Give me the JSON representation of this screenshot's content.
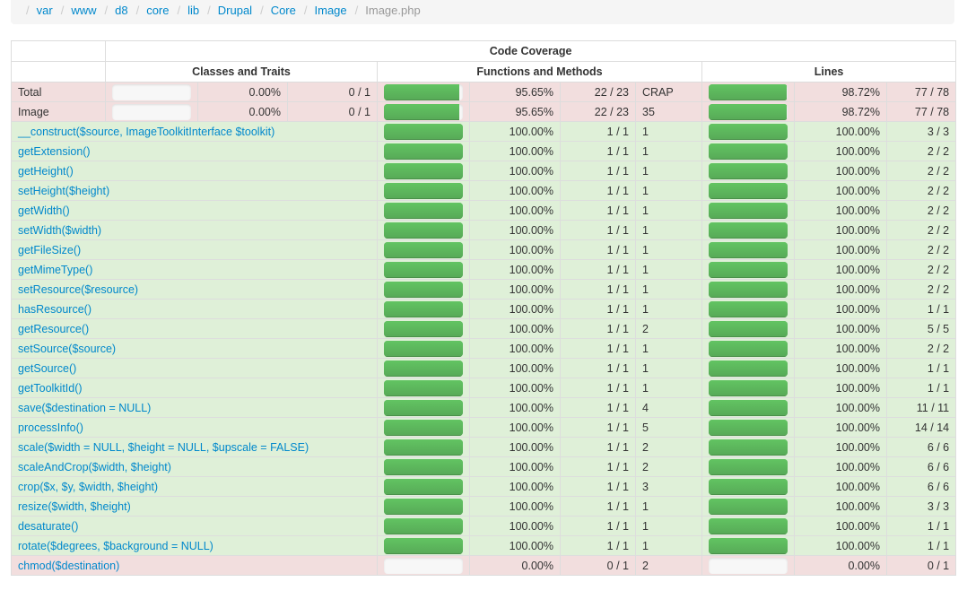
{
  "breadcrumb": [
    "var",
    "www",
    "d8",
    "core",
    "lib",
    "Drupal",
    "Core",
    "Image",
    "Image.php"
  ],
  "header": {
    "title": "Code Coverage",
    "classes": "Classes and Traits",
    "functions": "Functions and Methods",
    "lines": "Lines"
  },
  "colors": {
    "success": "#dff0d8",
    "danger": "#f2dede",
    "bar": "#5eb95e",
    "link": "#0088cc"
  },
  "rows": [
    {
      "name": "Total",
      "link": false,
      "status": "danger",
      "classes": {
        "pct": "0.00%",
        "ratio": "0 / 1",
        "fill": 0
      },
      "functions": {
        "pct": "95.65%",
        "ratio": "22 / 23",
        "fill": 0.9565
      },
      "crap": "CRAP",
      "lines": {
        "pct": "98.72%",
        "ratio": "77 / 78",
        "fill": 0.9872
      }
    },
    {
      "name": "Image",
      "link": false,
      "status": "danger",
      "classes": {
        "pct": "0.00%",
        "ratio": "0 / 1",
        "fill": 0
      },
      "functions": {
        "pct": "95.65%",
        "ratio": "22 / 23",
        "fill": 0.9565
      },
      "crap": "35",
      "lines": {
        "pct": "98.72%",
        "ratio": "77 / 78",
        "fill": 0.9872
      }
    },
    {
      "name": "__construct($source, ImageToolkitInterface $toolkit)",
      "link": true,
      "status": "success",
      "functions": {
        "pct": "100.00%",
        "ratio": "1 / 1",
        "fill": 1
      },
      "crap": "1",
      "lines": {
        "pct": "100.00%",
        "ratio": "3 / 3",
        "fill": 1
      }
    },
    {
      "name": "getExtension()",
      "link": true,
      "status": "success",
      "functions": {
        "pct": "100.00%",
        "ratio": "1 / 1",
        "fill": 1
      },
      "crap": "1",
      "lines": {
        "pct": "100.00%",
        "ratio": "2 / 2",
        "fill": 1
      }
    },
    {
      "name": "getHeight()",
      "link": true,
      "status": "success",
      "functions": {
        "pct": "100.00%",
        "ratio": "1 / 1",
        "fill": 1
      },
      "crap": "1",
      "lines": {
        "pct": "100.00%",
        "ratio": "2 / 2",
        "fill": 1
      }
    },
    {
      "name": "setHeight($height)",
      "link": true,
      "status": "success",
      "functions": {
        "pct": "100.00%",
        "ratio": "1 / 1",
        "fill": 1
      },
      "crap": "1",
      "lines": {
        "pct": "100.00%",
        "ratio": "2 / 2",
        "fill": 1
      }
    },
    {
      "name": "getWidth()",
      "link": true,
      "status": "success",
      "functions": {
        "pct": "100.00%",
        "ratio": "1 / 1",
        "fill": 1
      },
      "crap": "1",
      "lines": {
        "pct": "100.00%",
        "ratio": "2 / 2",
        "fill": 1
      }
    },
    {
      "name": "setWidth($width)",
      "link": true,
      "status": "success",
      "functions": {
        "pct": "100.00%",
        "ratio": "1 / 1",
        "fill": 1
      },
      "crap": "1",
      "lines": {
        "pct": "100.00%",
        "ratio": "2 / 2",
        "fill": 1
      }
    },
    {
      "name": "getFileSize()",
      "link": true,
      "status": "success",
      "functions": {
        "pct": "100.00%",
        "ratio": "1 / 1",
        "fill": 1
      },
      "crap": "1",
      "lines": {
        "pct": "100.00%",
        "ratio": "2 / 2",
        "fill": 1
      }
    },
    {
      "name": "getMimeType()",
      "link": true,
      "status": "success",
      "functions": {
        "pct": "100.00%",
        "ratio": "1 / 1",
        "fill": 1
      },
      "crap": "1",
      "lines": {
        "pct": "100.00%",
        "ratio": "2 / 2",
        "fill": 1
      }
    },
    {
      "name": "setResource($resource)",
      "link": true,
      "status": "success",
      "functions": {
        "pct": "100.00%",
        "ratio": "1 / 1",
        "fill": 1
      },
      "crap": "1",
      "lines": {
        "pct": "100.00%",
        "ratio": "2 / 2",
        "fill": 1
      }
    },
    {
      "name": "hasResource()",
      "link": true,
      "status": "success",
      "functions": {
        "pct": "100.00%",
        "ratio": "1 / 1",
        "fill": 1
      },
      "crap": "1",
      "lines": {
        "pct": "100.00%",
        "ratio": "1 / 1",
        "fill": 1
      }
    },
    {
      "name": "getResource()",
      "link": true,
      "status": "success",
      "functions": {
        "pct": "100.00%",
        "ratio": "1 / 1",
        "fill": 1
      },
      "crap": "2",
      "lines": {
        "pct": "100.00%",
        "ratio": "5 / 5",
        "fill": 1
      }
    },
    {
      "name": "setSource($source)",
      "link": true,
      "status": "success",
      "functions": {
        "pct": "100.00%",
        "ratio": "1 / 1",
        "fill": 1
      },
      "crap": "1",
      "lines": {
        "pct": "100.00%",
        "ratio": "2 / 2",
        "fill": 1
      }
    },
    {
      "name": "getSource()",
      "link": true,
      "status": "success",
      "functions": {
        "pct": "100.00%",
        "ratio": "1 / 1",
        "fill": 1
      },
      "crap": "1",
      "lines": {
        "pct": "100.00%",
        "ratio": "1 / 1",
        "fill": 1
      }
    },
    {
      "name": "getToolkitId()",
      "link": true,
      "status": "success",
      "functions": {
        "pct": "100.00%",
        "ratio": "1 / 1",
        "fill": 1
      },
      "crap": "1",
      "lines": {
        "pct": "100.00%",
        "ratio": "1 / 1",
        "fill": 1
      }
    },
    {
      "name": "save($destination = NULL)",
      "link": true,
      "status": "success",
      "functions": {
        "pct": "100.00%",
        "ratio": "1 / 1",
        "fill": 1
      },
      "crap": "4",
      "lines": {
        "pct": "100.00%",
        "ratio": "11 / 11",
        "fill": 1
      }
    },
    {
      "name": "processInfo()",
      "link": true,
      "status": "success",
      "functions": {
        "pct": "100.00%",
        "ratio": "1 / 1",
        "fill": 1
      },
      "crap": "5",
      "lines": {
        "pct": "100.00%",
        "ratio": "14 / 14",
        "fill": 1
      }
    },
    {
      "name": "scale($width = NULL, $height = NULL, $upscale = FALSE)",
      "link": true,
      "status": "success",
      "functions": {
        "pct": "100.00%",
        "ratio": "1 / 1",
        "fill": 1
      },
      "crap": "2",
      "lines": {
        "pct": "100.00%",
        "ratio": "6 / 6",
        "fill": 1
      }
    },
    {
      "name": "scaleAndCrop($width, $height)",
      "link": true,
      "status": "success",
      "functions": {
        "pct": "100.00%",
        "ratio": "1 / 1",
        "fill": 1
      },
      "crap": "2",
      "lines": {
        "pct": "100.00%",
        "ratio": "6 / 6",
        "fill": 1
      }
    },
    {
      "name": "crop($x, $y, $width, $height)",
      "link": true,
      "status": "success",
      "functions": {
        "pct": "100.00%",
        "ratio": "1 / 1",
        "fill": 1
      },
      "crap": "3",
      "lines": {
        "pct": "100.00%",
        "ratio": "6 / 6",
        "fill": 1
      }
    },
    {
      "name": "resize($width, $height)",
      "link": true,
      "status": "success",
      "functions": {
        "pct": "100.00%",
        "ratio": "1 / 1",
        "fill": 1
      },
      "crap": "1",
      "lines": {
        "pct": "100.00%",
        "ratio": "3 / 3",
        "fill": 1
      }
    },
    {
      "name": "desaturate()",
      "link": true,
      "status": "success",
      "functions": {
        "pct": "100.00%",
        "ratio": "1 / 1",
        "fill": 1
      },
      "crap": "1",
      "lines": {
        "pct": "100.00%",
        "ratio": "1 / 1",
        "fill": 1
      }
    },
    {
      "name": "rotate($degrees, $background = NULL)",
      "link": true,
      "status": "success",
      "functions": {
        "pct": "100.00%",
        "ratio": "1 / 1",
        "fill": 1
      },
      "crap": "1",
      "lines": {
        "pct": "100.00%",
        "ratio": "1 / 1",
        "fill": 1
      }
    },
    {
      "name": "chmod($destination)",
      "link": true,
      "status": "danger",
      "functions": {
        "pct": "0.00%",
        "ratio": "0 / 1",
        "fill": 0
      },
      "crap": "2",
      "lines": {
        "pct": "0.00%",
        "ratio": "0 / 1",
        "fill": 0
      }
    }
  ]
}
